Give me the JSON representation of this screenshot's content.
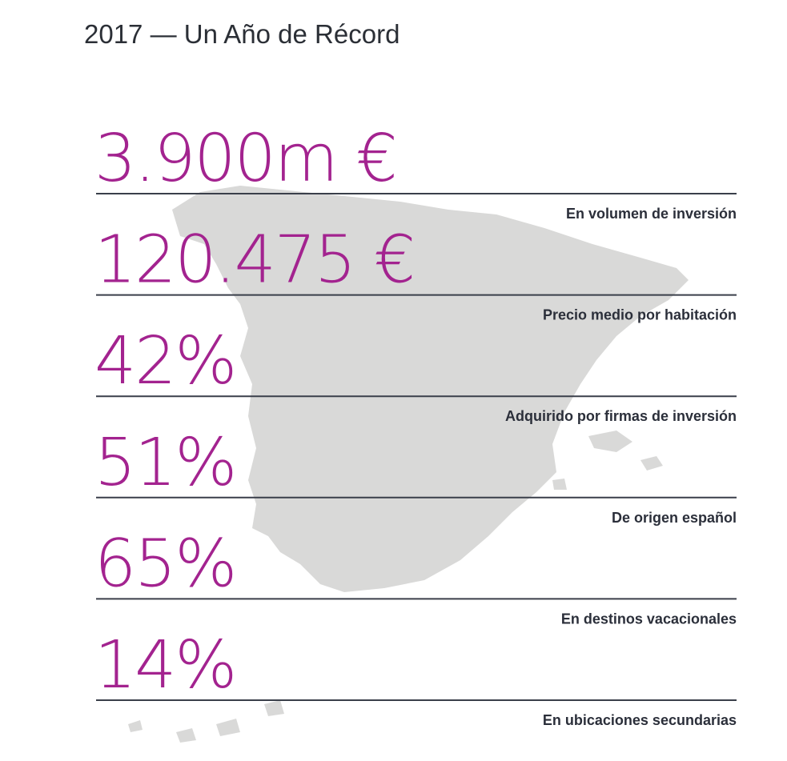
{
  "header": {
    "title": "2017 — Un Año de Récord"
  },
  "items": [
    {
      "value": "3.900m €",
      "label": "En volumen de inversión"
    },
    {
      "value": "120.475 €",
      "label": "Precio medio por habitación"
    },
    {
      "value": "42%",
      "label": "Adquirido por firmas de inversión"
    },
    {
      "value": "51%",
      "label": "De origen español"
    },
    {
      "value": "65%",
      "label": "En destinos vacacionales"
    },
    {
      "value": "14%",
      "label": "En ubicaciones secundarias"
    }
  ]
}
